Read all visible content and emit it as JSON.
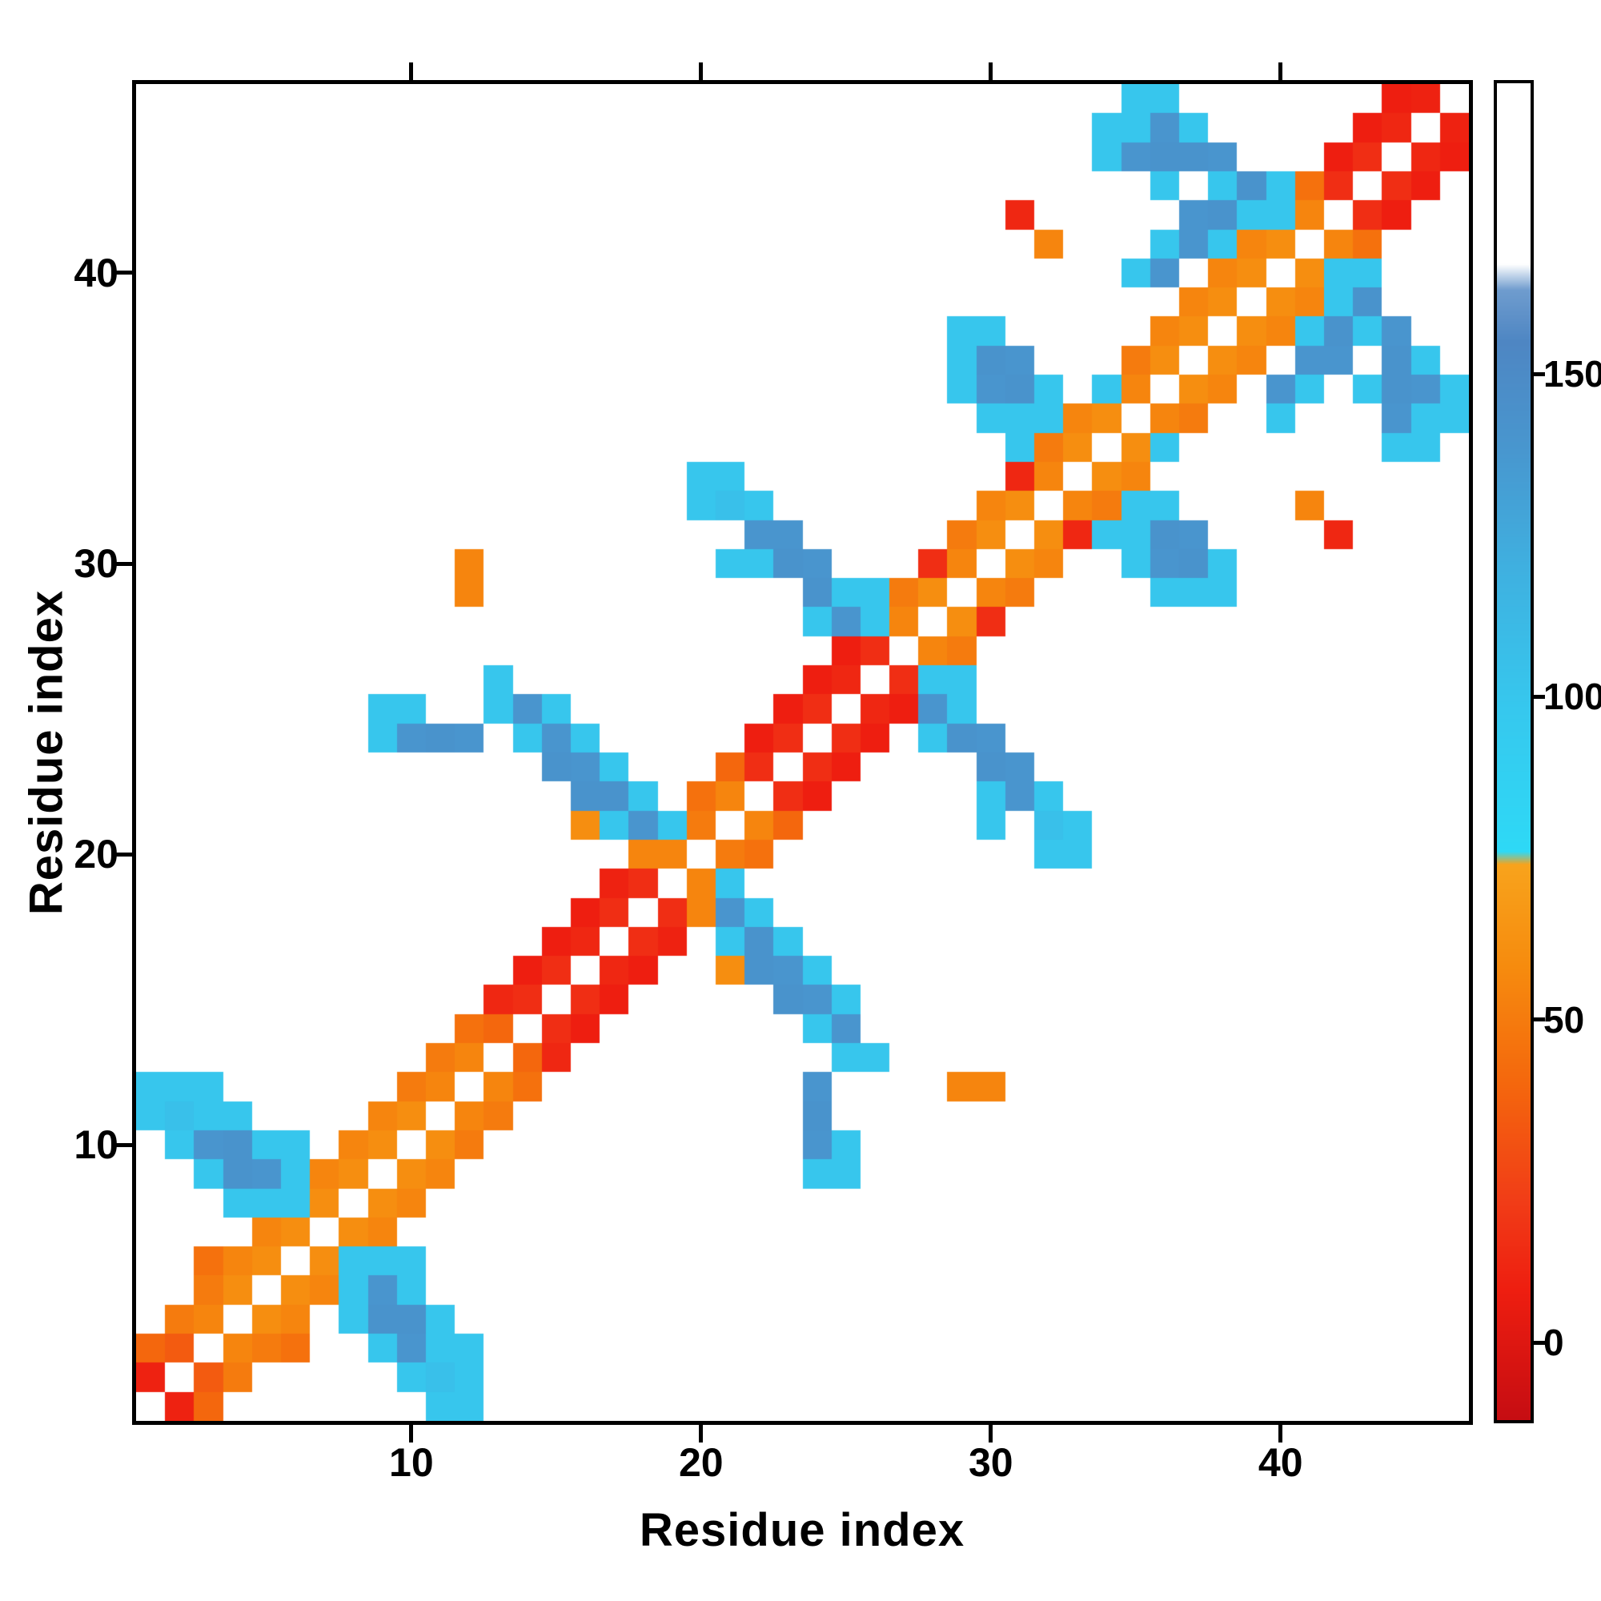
{
  "chart_data": {
    "type": "heatmap",
    "title": "",
    "xlabel": "Residue index",
    "ylabel": "Residue index",
    "n_residues": 46,
    "x_range": [
      1,
      46
    ],
    "y_range": [
      1,
      46
    ],
    "x_ticks": [
      10,
      20,
      30,
      40
    ],
    "y_ticks": [
      10,
      20,
      30,
      40
    ],
    "grid": false,
    "symmetric": true,
    "diagonal": "white-masked",
    "background": "#ffffff",
    "colorbar": {
      "position": "right",
      "ticks": [
        0,
        50,
        100,
        150
      ],
      "vmin": -12,
      "vmax": 195,
      "stops": [
        [
          -12,
          "#c60d12"
        ],
        [
          8,
          "#ee1e10"
        ],
        [
          22,
          "#f13d17"
        ],
        [
          40,
          "#f4670d"
        ],
        [
          58,
          "#f68b0e"
        ],
        [
          74,
          "#f8a31c"
        ],
        [
          76,
          "#2ed9f6"
        ],
        [
          98,
          "#36c8ee"
        ],
        [
          120,
          "#3fb0e0"
        ],
        [
          138,
          "#4897cf"
        ],
        [
          155,
          "#4e86c3"
        ],
        [
          163,
          "#6f9cce"
        ],
        [
          167,
          "#ffffff"
        ],
        [
          195,
          "#ffffff"
        ]
      ]
    },
    "cells": [
      [
        1,
        2,
        10
      ],
      [
        1,
        3,
        40
      ],
      [
        2,
        3,
        35
      ],
      [
        2,
        4,
        50
      ],
      [
        3,
        4,
        55
      ],
      [
        3,
        5,
        50
      ],
      [
        3,
        6,
        45
      ],
      [
        4,
        5,
        60
      ],
      [
        4,
        6,
        55
      ],
      [
        5,
        6,
        60
      ],
      [
        5,
        7,
        55
      ],
      [
        6,
        7,
        60
      ],
      [
        6,
        8,
        55
      ],
      [
        7,
        8,
        60
      ],
      [
        7,
        9,
        55
      ],
      [
        8,
        9,
        60
      ],
      [
        8,
        10,
        55
      ],
      [
        9,
        10,
        60
      ],
      [
        9,
        11,
        55
      ],
      [
        10,
        11,
        60
      ],
      [
        10,
        12,
        50
      ],
      [
        11,
        12,
        55
      ],
      [
        11,
        13,
        50
      ],
      [
        12,
        13,
        55
      ],
      [
        12,
        14,
        45
      ],
      [
        13,
        14,
        40
      ],
      [
        13,
        15,
        12
      ],
      [
        14,
        15,
        15
      ],
      [
        14,
        16,
        8
      ],
      [
        15,
        16,
        15
      ],
      [
        15,
        17,
        8
      ],
      [
        16,
        17,
        12
      ],
      [
        16,
        18,
        8
      ],
      [
        17,
        18,
        15
      ],
      [
        17,
        19,
        10
      ],
      [
        18,
        19,
        15
      ],
      [
        18,
        20,
        55
      ],
      [
        19,
        20,
        55
      ],
      [
        20,
        21,
        50
      ],
      [
        20,
        22,
        45
      ],
      [
        21,
        22,
        55
      ],
      [
        21,
        23,
        40
      ],
      [
        22,
        23,
        15
      ],
      [
        22,
        24,
        8
      ],
      [
        23,
        24,
        15
      ],
      [
        23,
        25,
        8
      ],
      [
        24,
        25,
        15
      ],
      [
        24,
        26,
        8
      ],
      [
        25,
        26,
        12
      ],
      [
        25,
        27,
        8
      ],
      [
        26,
        27,
        15
      ],
      [
        27,
        28,
        55
      ],
      [
        27,
        29,
        50
      ],
      [
        28,
        29,
        60
      ],
      [
        28,
        30,
        15
      ],
      [
        29,
        30,
        55
      ],
      [
        29,
        31,
        50
      ],
      [
        30,
        31,
        60
      ],
      [
        30,
        32,
        55
      ],
      [
        31,
        32,
        60
      ],
      [
        31,
        33,
        12
      ],
      [
        32,
        33,
        55
      ],
      [
        32,
        34,
        50
      ],
      [
        33,
        34,
        60
      ],
      [
        33,
        35,
        55
      ],
      [
        34,
        35,
        60
      ],
      [
        35,
        36,
        55
      ],
      [
        35,
        37,
        50
      ],
      [
        36,
        37,
        60
      ],
      [
        36,
        38,
        55
      ],
      [
        37,
        38,
        60
      ],
      [
        37,
        39,
        55
      ],
      [
        38,
        39,
        60
      ],
      [
        38,
        40,
        55
      ],
      [
        39,
        40,
        60
      ],
      [
        39,
        41,
        55
      ],
      [
        40,
        41,
        60
      ],
      [
        41,
        42,
        55
      ],
      [
        41,
        43,
        45
      ],
      [
        42,
        43,
        15
      ],
      [
        42,
        44,
        8
      ],
      [
        43,
        44,
        15
      ],
      [
        43,
        45,
        8
      ],
      [
        44,
        45,
        12
      ],
      [
        44,
        46,
        8
      ],
      [
        45,
        46,
        10
      ],
      [
        1,
        11,
        100
      ],
      [
        1,
        12,
        100
      ],
      [
        2,
        10,
        100
      ],
      [
        2,
        11,
        105
      ],
      [
        2,
        12,
        100
      ],
      [
        3,
        9,
        100
      ],
      [
        3,
        10,
        140
      ],
      [
        3,
        11,
        100
      ],
      [
        3,
        12,
        100
      ],
      [
        4,
        8,
        100
      ],
      [
        4,
        9,
        142
      ],
      [
        4,
        10,
        142
      ],
      [
        4,
        11,
        100
      ],
      [
        5,
        8,
        100
      ],
      [
        5,
        9,
        140
      ],
      [
        5,
        10,
        100
      ],
      [
        6,
        8,
        100
      ],
      [
        6,
        9,
        100
      ],
      [
        6,
        10,
        100
      ],
      [
        9,
        24,
        100
      ],
      [
        9,
        25,
        100
      ],
      [
        10,
        24,
        140
      ],
      [
        10,
        25,
        100
      ],
      [
        11,
        24,
        142
      ],
      [
        12,
        24,
        140
      ],
      [
        13,
        25,
        100
      ],
      [
        13,
        26,
        100
      ],
      [
        14,
        24,
        100
      ],
      [
        14,
        25,
        140
      ],
      [
        15,
        23,
        142
      ],
      [
        15,
        24,
        140
      ],
      [
        15,
        25,
        100
      ],
      [
        16,
        21,
        60
      ],
      [
        16,
        22,
        142
      ],
      [
        16,
        23,
        140
      ],
      [
        16,
        24,
        100
      ],
      [
        17,
        21,
        100
      ],
      [
        17,
        22,
        142
      ],
      [
        17,
        23,
        100
      ],
      [
        18,
        21,
        140
      ],
      [
        18,
        22,
        100
      ],
      [
        19,
        21,
        100
      ],
      [
        20,
        32,
        100
      ],
      [
        20,
        33,
        100
      ],
      [
        21,
        30,
        100
      ],
      [
        21,
        32,
        105
      ],
      [
        21,
        33,
        100
      ],
      [
        22,
        30,
        100
      ],
      [
        22,
        31,
        140
      ],
      [
        22,
        32,
        100
      ],
      [
        23,
        30,
        142
      ],
      [
        23,
        31,
        140
      ],
      [
        24,
        28,
        100
      ],
      [
        24,
        29,
        142
      ],
      [
        24,
        30,
        140
      ],
      [
        25,
        28,
        140
      ],
      [
        25,
        29,
        100
      ],
      [
        26,
        28,
        100
      ],
      [
        26,
        29,
        100
      ],
      [
        12,
        29,
        55
      ],
      [
        12,
        30,
        55
      ],
      [
        29,
        36,
        100
      ],
      [
        29,
        37,
        100
      ],
      [
        29,
        38,
        100
      ],
      [
        30,
        35,
        100
      ],
      [
        30,
        36,
        140
      ],
      [
        30,
        37,
        142
      ],
      [
        30,
        38,
        100
      ],
      [
        31,
        34,
        100
      ],
      [
        31,
        35,
        100
      ],
      [
        31,
        36,
        142
      ],
      [
        31,
        37,
        140
      ],
      [
        32,
        35,
        100
      ],
      [
        32,
        36,
        100
      ],
      [
        34,
        36,
        100
      ],
      [
        31,
        42,
        12
      ],
      [
        32,
        41,
        55
      ],
      [
        34,
        44,
        100
      ],
      [
        34,
        45,
        100
      ],
      [
        35,
        40,
        100
      ],
      [
        35,
        44,
        140
      ],
      [
        35,
        45,
        100
      ],
      [
        35,
        46,
        100
      ],
      [
        36,
        40,
        140
      ],
      [
        36,
        41,
        100
      ],
      [
        36,
        43,
        100
      ],
      [
        36,
        44,
        142
      ],
      [
        36,
        45,
        140
      ],
      [
        36,
        46,
        100
      ],
      [
        37,
        41,
        140
      ],
      [
        37,
        42,
        140
      ],
      [
        37,
        44,
        142
      ],
      [
        37,
        45,
        100
      ],
      [
        38,
        41,
        100
      ],
      [
        38,
        42,
        142
      ],
      [
        38,
        43,
        100
      ],
      [
        38,
        44,
        140
      ],
      [
        39,
        42,
        100
      ],
      [
        39,
        43,
        142
      ],
      [
        40,
        42,
        100
      ],
      [
        40,
        43,
        100
      ]
    ]
  }
}
